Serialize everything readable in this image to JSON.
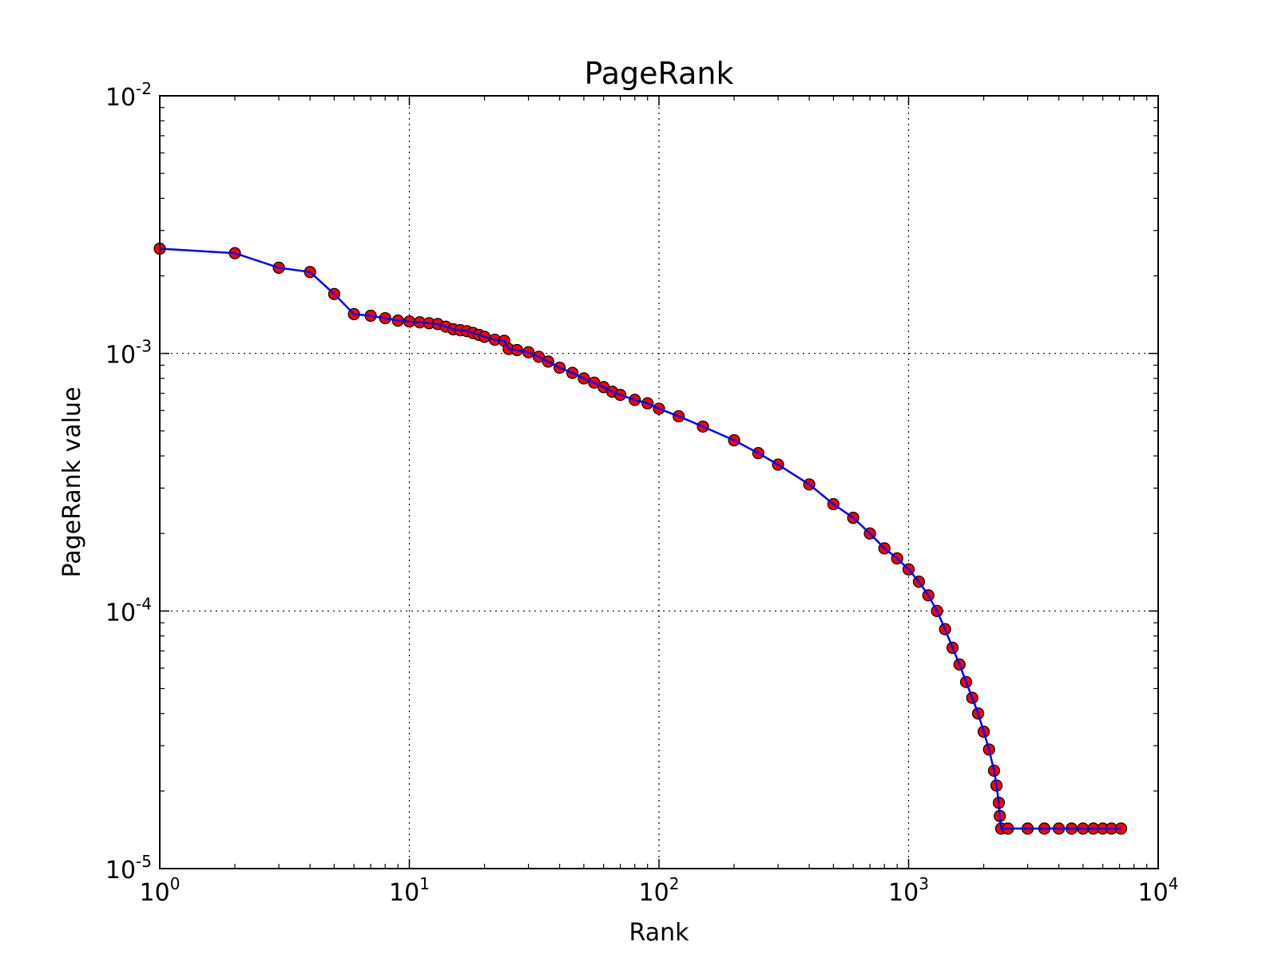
{
  "chart_data": {
    "type": "line",
    "title": "PageRank",
    "xlabel": "Rank",
    "ylabel": "PageRank value",
    "xscale": "log",
    "yscale": "log",
    "xlim": [
      1,
      10000
    ],
    "ylim": [
      1e-05,
      0.01
    ],
    "grid": true,
    "x_ticks": [
      {
        "base": "10",
        "exp": "0",
        "value": 1
      },
      {
        "base": "10",
        "exp": "1",
        "value": 10
      },
      {
        "base": "10",
        "exp": "2",
        "value": 100
      },
      {
        "base": "10",
        "exp": "3",
        "value": 1000
      },
      {
        "base": "10",
        "exp": "4",
        "value": 10000
      }
    ],
    "y_ticks": [
      {
        "base": "10",
        "exp": "-5",
        "value": 1e-05
      },
      {
        "base": "10",
        "exp": "-4",
        "value": 0.0001
      },
      {
        "base": "10",
        "exp": "-3",
        "value": 0.001
      },
      {
        "base": "10",
        "exp": "-2",
        "value": 0.01
      }
    ],
    "series": [
      {
        "line_color": "#0000ff",
        "marker_color": "#ff0000",
        "marker_edge": "#000000",
        "points": [
          [
            1,
            0.00255
          ],
          [
            2,
            0.00245
          ],
          [
            3,
            0.00215
          ],
          [
            4,
            0.00207
          ],
          [
            5,
            0.0017
          ],
          [
            6,
            0.00142
          ],
          [
            7,
            0.0014
          ],
          [
            8,
            0.00137
          ],
          [
            9,
            0.00134
          ],
          [
            10,
            0.00133
          ],
          [
            11,
            0.00132
          ],
          [
            12,
            0.00131
          ],
          [
            13,
            0.0013
          ],
          [
            14,
            0.00127
          ],
          [
            15,
            0.00124
          ],
          [
            16,
            0.00123
          ],
          [
            17,
            0.00122
          ],
          [
            18,
            0.0012
          ],
          [
            19,
            0.00118
          ],
          [
            20,
            0.00116
          ],
          [
            22,
            0.00113
          ],
          [
            24,
            0.00112
          ],
          [
            25,
            0.00104
          ],
          [
            27,
            0.00103
          ],
          [
            30,
            0.00101
          ],
          [
            33,
            0.00097
          ],
          [
            36,
            0.00093
          ],
          [
            40,
            0.00088
          ],
          [
            45,
            0.00084
          ],
          [
            50,
            0.0008
          ],
          [
            55,
            0.00077
          ],
          [
            60,
            0.00074
          ],
          [
            65,
            0.00071
          ],
          [
            70,
            0.00069
          ],
          [
            80,
            0.00066
          ],
          [
            90,
            0.00064
          ],
          [
            100,
            0.00061
          ],
          [
            120,
            0.00057
          ],
          [
            150,
            0.00052
          ],
          [
            200,
            0.00046
          ],
          [
            250,
            0.00041
          ],
          [
            300,
            0.00037
          ],
          [
            400,
            0.00031
          ],
          [
            500,
            0.00026
          ],
          [
            600,
            0.00023
          ],
          [
            700,
            0.0002
          ],
          [
            800,
            0.000175
          ],
          [
            900,
            0.00016
          ],
          [
            1000,
            0.000145
          ],
          [
            1100,
            0.00013
          ],
          [
            1200,
            0.000115
          ],
          [
            1300,
            0.0001
          ],
          [
            1400,
            8.5e-05
          ],
          [
            1500,
            7.2e-05
          ],
          [
            1600,
            6.2e-05
          ],
          [
            1700,
            5.3e-05
          ],
          [
            1800,
            4.6e-05
          ],
          [
            1900,
            4e-05
          ],
          [
            2000,
            3.4e-05
          ],
          [
            2100,
            2.9e-05
          ],
          [
            2200,
            2.4e-05
          ],
          [
            2250,
            2.1e-05
          ],
          [
            2300,
            1.8e-05
          ],
          [
            2320,
            1.6e-05
          ],
          [
            2350,
            1.43e-05
          ],
          [
            2500,
            1.43e-05
          ],
          [
            3000,
            1.43e-05
          ],
          [
            3500,
            1.43e-05
          ],
          [
            4000,
            1.43e-05
          ],
          [
            4500,
            1.43e-05
          ],
          [
            5000,
            1.43e-05
          ],
          [
            5500,
            1.43e-05
          ],
          [
            6000,
            1.43e-05
          ],
          [
            6500,
            1.43e-05
          ],
          [
            7100,
            1.43e-05
          ]
        ]
      }
    ]
  }
}
